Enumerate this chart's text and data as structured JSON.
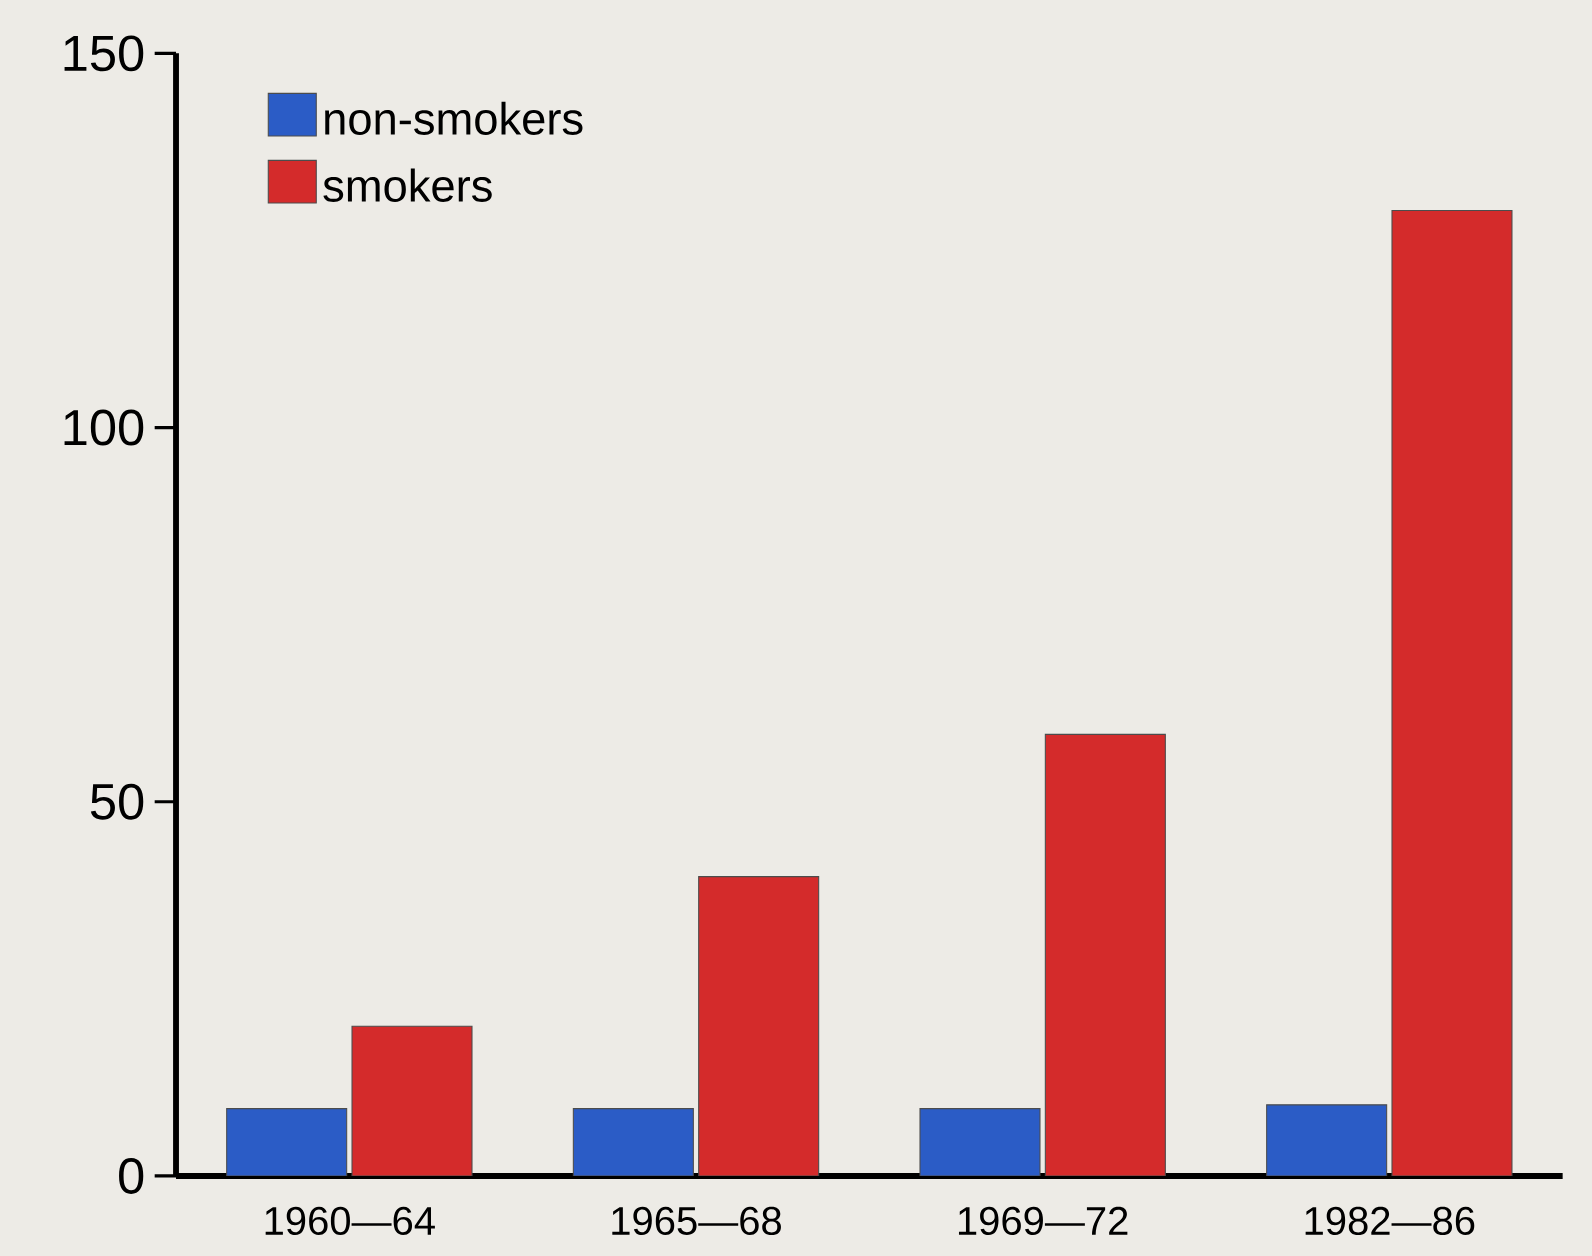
{
  "chart_data": {
    "type": "bar",
    "categories": [
      "1960—64",
      "1965—68",
      "1969—72",
      "1982—86"
    ],
    "series": [
      {
        "name": "non-smokers",
        "color": "#2b5cc6",
        "values": [
          9,
          9,
          9,
          9.5
        ]
      },
      {
        "name": "smokers",
        "color": "#d42b2b",
        "values": [
          20,
          40,
          59,
          129
        ]
      }
    ],
    "ylim": [
      0,
      150
    ],
    "yticks": [
      0,
      50,
      100,
      150
    ],
    "grid": false,
    "legend": "top left"
  }
}
